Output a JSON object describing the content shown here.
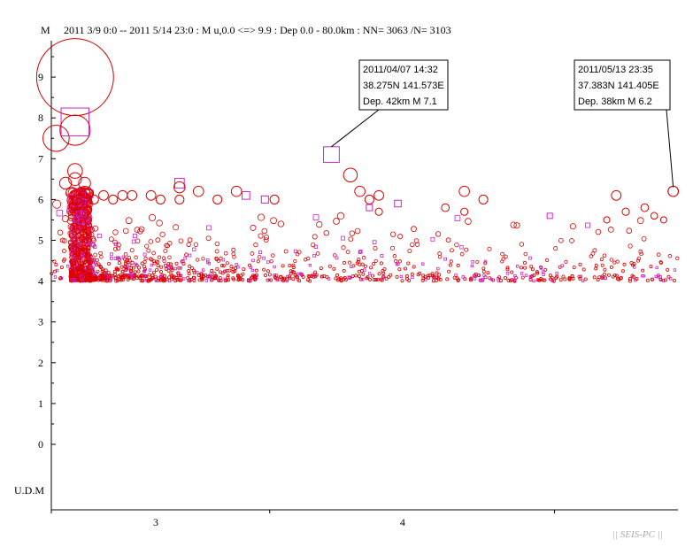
{
  "chart_data": {
    "type": "scatter",
    "header": {
      "ylabel": "M",
      "info": "2011 3/9 0:0 -- 2011 5/14 23:0  : M u,0.0 <=> 9.9   :  Dep 0.0 - 80.0km :  NN= 3063 /N= 3103"
    },
    "udm_label": "U.D.M",
    "credit": "|| SEIS-PC ||",
    "x_ticks": [
      "3",
      "4"
    ],
    "y_ticks": [
      "0",
      "1",
      "2",
      "3",
      "4",
      "5",
      "6",
      "7",
      "8",
      "9"
    ],
    "x_range": [
      "2011-03-09",
      "2011-05-14"
    ],
    "ylim": [
      -1.1,
      9.9
    ],
    "colors": {
      "circle": "#dd0000",
      "square": "#cc22cc",
      "axis": "#000000"
    },
    "annotations": [
      {
        "lines": [
          "2011/04/07 14:32",
          "38.275N   141.573E",
          "Dep. 42km    M 7.1"
        ],
        "target": {
          "date": "2011-04-07",
          "m": 7.1,
          "marker": "square"
        }
      },
      {
        "lines": [
          "2011/05/13 23:35",
          "37.383N   141.405E",
          "Dep. 38km    M 6.2"
        ],
        "target": {
          "date": "2011-05-13",
          "m": 6.2,
          "marker": "circle"
        }
      }
    ],
    "notable_events": [
      {
        "date": "2011-03-09",
        "m": 7.5,
        "marker": "circle"
      },
      {
        "date": "2011-03-11",
        "m": 9.0,
        "marker": "circle"
      },
      {
        "date": "2011-03-11",
        "m": 7.9,
        "marker": "square"
      },
      {
        "date": "2011-03-11",
        "m": 7.7,
        "marker": "circle"
      },
      {
        "date": "2011-03-10",
        "m": 6.4,
        "marker": "circle"
      },
      {
        "date": "2011-03-11",
        "m": 6.7,
        "marker": "circle"
      },
      {
        "date": "2011-03-11",
        "m": 6.5,
        "marker": "circle"
      },
      {
        "date": "2011-03-12",
        "m": 6.4,
        "marker": "circle"
      },
      {
        "date": "2011-03-12",
        "m": 6.2,
        "marker": "circle"
      },
      {
        "date": "2011-03-13",
        "m": 6.0,
        "marker": "circle"
      },
      {
        "date": "2011-03-14",
        "m": 6.1,
        "marker": "circle"
      },
      {
        "date": "2011-03-15",
        "m": 6.0,
        "marker": "circle"
      },
      {
        "date": "2011-03-16",
        "m": 6.1,
        "marker": "circle"
      },
      {
        "date": "2011-03-17",
        "m": 6.1,
        "marker": "circle"
      },
      {
        "date": "2011-03-19",
        "m": 6.1,
        "marker": "circle"
      },
      {
        "date": "2011-03-20",
        "m": 6.0,
        "marker": "circle"
      },
      {
        "date": "2011-03-22",
        "m": 6.4,
        "marker": "square"
      },
      {
        "date": "2011-03-22",
        "m": 6.3,
        "marker": "circle"
      },
      {
        "date": "2011-03-22",
        "m": 6.0,
        "marker": "circle"
      },
      {
        "date": "2011-03-24",
        "m": 6.2,
        "marker": "circle"
      },
      {
        "date": "2011-03-26",
        "m": 6.0,
        "marker": "circle"
      },
      {
        "date": "2011-03-28",
        "m": 6.2,
        "marker": "circle"
      },
      {
        "date": "2011-03-29",
        "m": 6.1,
        "marker": "square"
      },
      {
        "date": "2011-03-31",
        "m": 6.0,
        "marker": "square"
      },
      {
        "date": "2011-04-01",
        "m": 6.0,
        "marker": "circle"
      },
      {
        "date": "2011-04-09",
        "m": 6.6,
        "marker": "circle"
      },
      {
        "date": "2011-04-10",
        "m": 6.2,
        "marker": "circle"
      },
      {
        "date": "2011-04-11",
        "m": 6.0,
        "marker": "circle"
      },
      {
        "date": "2011-04-11",
        "m": 5.8,
        "marker": "square"
      },
      {
        "date": "2011-04-12",
        "m": 6.1,
        "marker": "circle"
      },
      {
        "date": "2011-04-12",
        "m": 5.7,
        "marker": "circle"
      },
      {
        "date": "2011-04-14",
        "m": 5.9,
        "marker": "square"
      },
      {
        "date": "2011-04-19",
        "m": 5.8,
        "marker": "circle"
      },
      {
        "date": "2011-04-21",
        "m": 6.2,
        "marker": "circle"
      },
      {
        "date": "2011-04-21",
        "m": 5.7,
        "marker": "circle"
      },
      {
        "date": "2011-04-23",
        "m": 6.0,
        "marker": "circle"
      },
      {
        "date": "2011-04-30",
        "m": 5.6,
        "marker": "square"
      },
      {
        "date": "2011-05-06",
        "m": 5.5,
        "marker": "circle"
      },
      {
        "date": "2011-05-07",
        "m": 6.1,
        "marker": "circle"
      },
      {
        "date": "2011-05-08",
        "m": 5.7,
        "marker": "circle"
      },
      {
        "date": "2011-05-10",
        "m": 5.8,
        "marker": "circle"
      },
      {
        "date": "2011-05-11",
        "m": 5.6,
        "marker": "circle"
      },
      {
        "date": "2011-05-12",
        "m": 5.5,
        "marker": "circle"
      },
      {
        "date": "2011-05-13",
        "m": 6.2,
        "marker": "circle"
      }
    ]
  }
}
